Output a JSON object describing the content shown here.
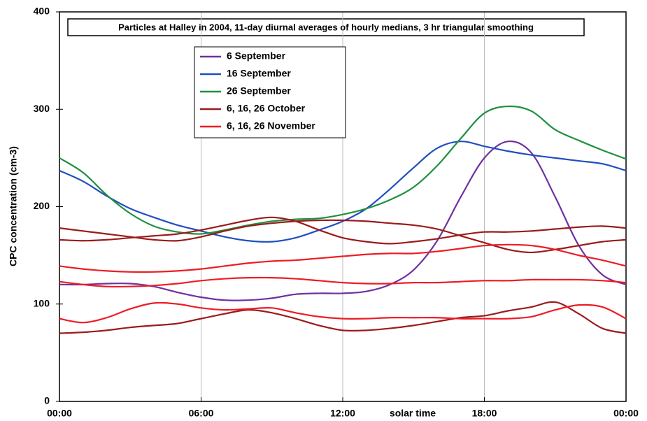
{
  "chart_data": {
    "type": "line",
    "title": "Particles at Halley in 2004, 11-day diurnal averages of hourly medians, 3 hr triangular smoothing",
    "x_label": "solar time",
    "y_label": "CPC concentration (cm-3)",
    "x": [
      0,
      1,
      2,
      3,
      4,
      5,
      6,
      7,
      8,
      9,
      10,
      11,
      12,
      13,
      14,
      15,
      16,
      17,
      18,
      19,
      20,
      21,
      22,
      23,
      24
    ],
    "xlim": [
      0,
      24
    ],
    "xticks": [
      {
        "value": 0,
        "label": "00:00"
      },
      {
        "value": 6,
        "label": "06:00"
      },
      {
        "value": 12,
        "label": "12:00"
      },
      {
        "value": 18,
        "label": "18:00"
      },
      {
        "value": 24,
        "label": "00:00"
      }
    ],
    "ylim": [
      0,
      400
    ],
    "yticks": [
      0,
      100,
      200,
      300,
      400
    ],
    "xgrid": true,
    "series": [
      {
        "name": "6 September",
        "color": "#7030a0",
        "values": [
          [
            120,
            120,
            121,
            121,
            118,
            112,
            107,
            104,
            104,
            106,
            110,
            111,
            111,
            113,
            120,
            135,
            165,
            210,
            250,
            267,
            255,
            210,
            160,
            130,
            120
          ]
        ]
      },
      {
        "name": "16 September",
        "color": "#1f4fbf",
        "values": [
          [
            237,
            226,
            211,
            198,
            189,
            181,
            175,
            169,
            165,
            164,
            168,
            176,
            185,
            198,
            218,
            240,
            260,
            267,
            262,
            257,
            253,
            250,
            247,
            244,
            237
          ]
        ]
      },
      {
        "name": "26 September",
        "color": "#1e9040",
        "values": [
          [
            250,
            235,
            212,
            193,
            180,
            174,
            172,
            176,
            181,
            185,
            187,
            188,
            192,
            198,
            207,
            220,
            242,
            270,
            296,
            303,
            298,
            279,
            268,
            258,
            249
          ]
        ]
      },
      {
        "name": "6, 16, 26 October",
        "color": "#9b1b1b",
        "values": [
          [
            166,
            165,
            166,
            168,
            170,
            172,
            176,
            181,
            186,
            189,
            185,
            176,
            168,
            164,
            162,
            164,
            167,
            171,
            174,
            174,
            175,
            177,
            179,
            180,
            178
          ],
          [
            178,
            175,
            172,
            169,
            166,
            165,
            169,
            175,
            180,
            183,
            185,
            186,
            186,
            185,
            183,
            181,
            177,
            170,
            163,
            156,
            153,
            156,
            160,
            164,
            166
          ],
          [
            70,
            71,
            73,
            76,
            78,
            80,
            85,
            90,
            94,
            91,
            85,
            78,
            73,
            73,
            75,
            78,
            82,
            86,
            88,
            93,
            97,
            102,
            90,
            75,
            70
          ]
        ]
      },
      {
        "name": "6, 16, 26 November",
        "color": "#ee1c24",
        "values": [
          [
            139,
            136,
            134,
            133,
            133,
            134,
            136,
            139,
            142,
            144,
            145,
            147,
            149,
            151,
            152,
            152,
            154,
            157,
            160,
            161,
            160,
            156,
            150,
            145,
            139
          ],
          [
            123,
            120,
            118,
            118,
            119,
            121,
            124,
            126,
            127,
            127,
            126,
            124,
            122,
            121,
            121,
            122,
            122,
            123,
            124,
            124,
            125,
            125,
            125,
            124,
            122
          ],
          [
            85,
            81,
            86,
            95,
            101,
            100,
            96,
            94,
            95,
            96,
            91,
            87,
            85,
            85,
            86,
            86,
            86,
            85,
            85,
            85,
            87,
            94,
            99,
            97,
            85
          ]
        ]
      }
    ]
  }
}
